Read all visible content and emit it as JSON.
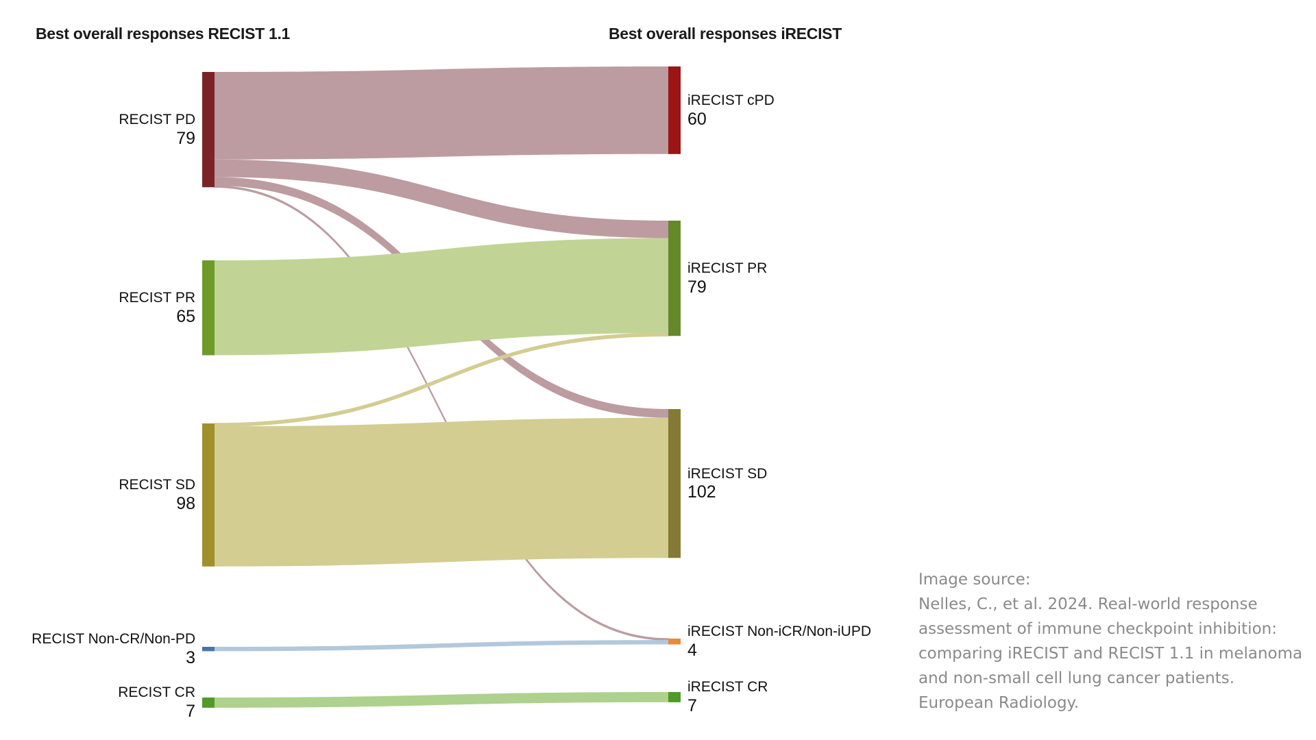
{
  "headers": {
    "left": "Best overall responses RECIST 1.1",
    "right": "Best overall responses iRECIST"
  },
  "source": {
    "lines": [
      "Image source:",
      "Nelles, C., et al. 2024. Real-world response",
      "assessment of immune checkpoint inhibition:",
      "comparing iRECIST and RECIST 1.1 in melanoma",
      "and non-small cell lung cancer patients.",
      "European Radiology."
    ]
  },
  "chart_data": {
    "type": "sankey",
    "title": "",
    "left_axis_title": "Best overall responses RECIST 1.1",
    "right_axis_title": "Best overall responses iRECIST",
    "sources": [
      {
        "id": "recist_pd",
        "name": "RECIST PD",
        "count": "79",
        "value": 79,
        "color": "#7a2428"
      },
      {
        "id": "recist_pr",
        "name": "RECIST PR",
        "count": "65",
        "value": 65,
        "color": "#6e9a2a"
      },
      {
        "id": "recist_sd",
        "name": "RECIST SD",
        "count": "98",
        "value": 98,
        "color": "#a08f2a"
      },
      {
        "id": "recist_noncr",
        "name": "RECIST Non-CR/Non-PD",
        "count": "3",
        "value": 3,
        "color": "#4a74a8"
      },
      {
        "id": "recist_cr",
        "name": "RECIST CR",
        "count": "7",
        "value": 7,
        "color": "#4f9a2a"
      }
    ],
    "targets": [
      {
        "id": "irecist_cpd",
        "name": "iRECIST cPD",
        "count": "60",
        "value": 60,
        "color": "#9b1515"
      },
      {
        "id": "irecist_pr",
        "name": "iRECIST PR",
        "count": "79",
        "value": 79,
        "color": "#64892a"
      },
      {
        "id": "irecist_sd",
        "name": "iRECIST SD",
        "count": "102",
        "value": 102,
        "color": "#857a35"
      },
      {
        "id": "irecist_noncr",
        "name": "iRECIST Non-iCR/Non-iUPD",
        "count": "4",
        "value": 4,
        "color": "#e88a38"
      },
      {
        "id": "irecist_cr",
        "name": "iRECIST CR",
        "count": "7",
        "value": 7,
        "color": "#4f9a2a"
      }
    ],
    "flows": [
      {
        "source": "recist_pd",
        "target": "irecist_cpd",
        "value": 60,
        "color": "#bc9ca1"
      },
      {
        "source": "recist_pd",
        "target": "irecist_pr",
        "value": 12,
        "color": "#bc9ca1"
      },
      {
        "source": "recist_pd",
        "target": "irecist_sd",
        "value": 6,
        "color": "#bc9ca1"
      },
      {
        "source": "recist_pd",
        "target": "irecist_noncr",
        "value": 1,
        "color": "#bc9ca1"
      },
      {
        "source": "recist_pr",
        "target": "irecist_pr",
        "value": 65,
        "color": "#c2d495"
      },
      {
        "source": "recist_sd",
        "target": "irecist_pr",
        "value": 2,
        "color": "#d3cd92"
      },
      {
        "source": "recist_sd",
        "target": "irecist_sd",
        "value": 96,
        "color": "#d3cd92"
      },
      {
        "source": "recist_noncr",
        "target": "irecist_noncr",
        "value": 3,
        "color": "#b2c8dc"
      },
      {
        "source": "recist_cr",
        "target": "irecist_cr",
        "value": 7,
        "color": "#aed18d"
      }
    ]
  }
}
